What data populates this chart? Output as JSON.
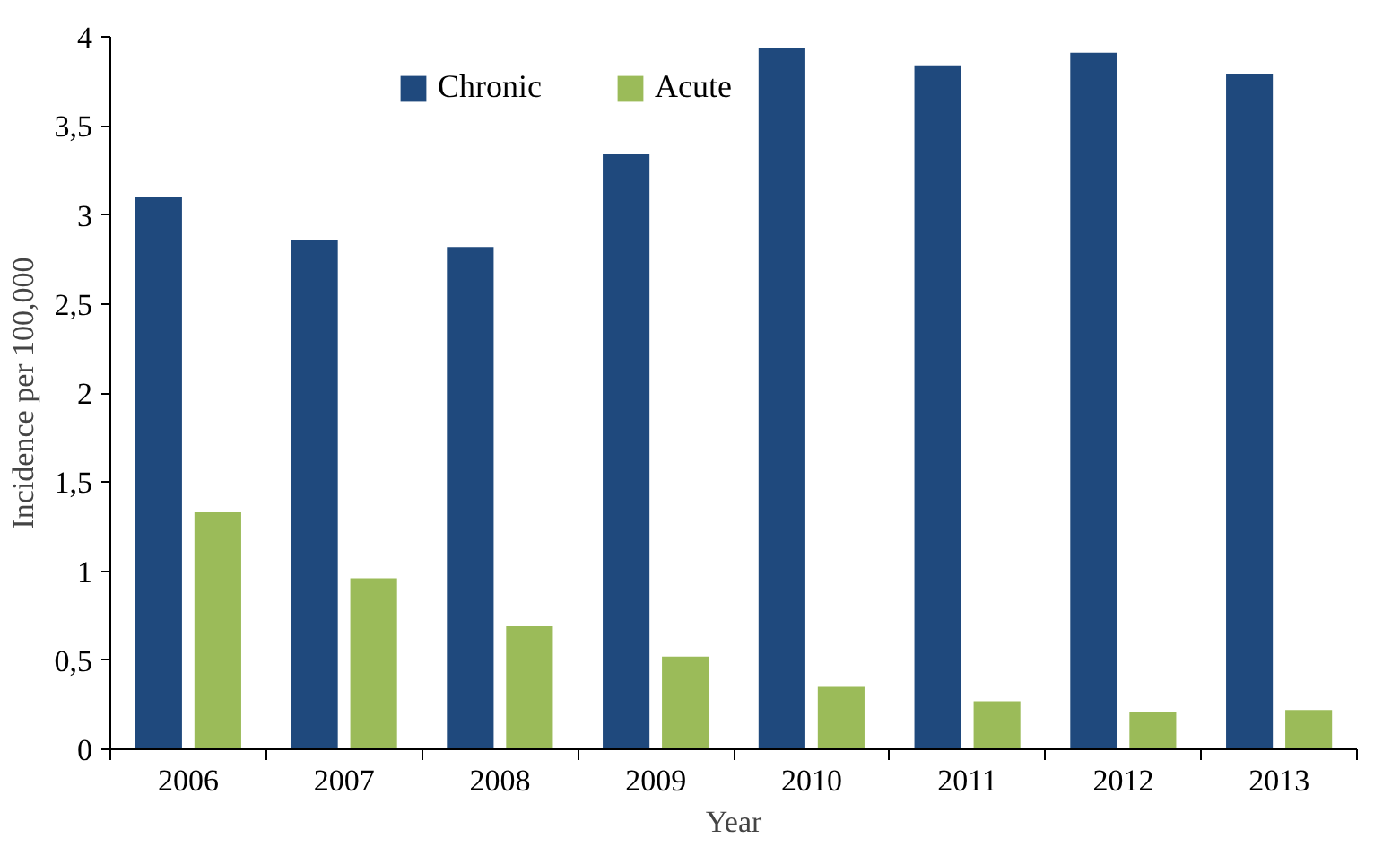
{
  "chart_data": {
    "type": "bar",
    "xlabel": "Year",
    "ylabel": "Incidence per 100,000",
    "categories": [
      "2006",
      "2007",
      "2008",
      "2009",
      "2010",
      "2011",
      "2012",
      "2013"
    ],
    "series": [
      {
        "name": "Chronic",
        "color": "#1f497d",
        "values": [
          3.1,
          2.86,
          2.82,
          3.34,
          3.94,
          3.84,
          3.91,
          3.79
        ]
      },
      {
        "name": "Acute",
        "color": "#9bbb59",
        "values": [
          1.33,
          0.96,
          0.69,
          0.52,
          0.35,
          0.27,
          0.21,
          0.22
        ]
      }
    ],
    "ylim": [
      0,
      4
    ],
    "yticks": [
      0,
      {
        "value": 0.5,
        "label": "0,5"
      },
      1,
      {
        "value": 1.5,
        "label": "1,5"
      },
      2,
      {
        "value": 2.5,
        "label": "2,5"
      },
      3,
      {
        "value": 3.5,
        "label": "3,5"
      },
      4
    ],
    "grid": false,
    "legend": "top"
  }
}
